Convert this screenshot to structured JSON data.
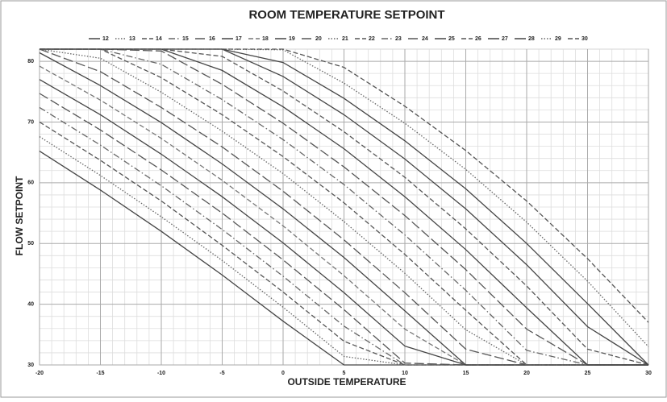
{
  "chart_data": {
    "type": "line",
    "title": "ROOM TEMPERATURE SETPOINT",
    "x_label": "OUTSIDE TEMPERATURE",
    "y_label": "FLOW SETPOINT",
    "x": [
      -20,
      -15,
      -10,
      -5,
      0,
      5,
      10,
      15,
      20,
      25,
      30
    ],
    "xlim": [
      -20,
      30
    ],
    "xticks": [
      -20,
      -15,
      -10,
      -5,
      0,
      5,
      10,
      15,
      20,
      25,
      30
    ],
    "ylim": [
      30,
      82
    ],
    "yticks": [
      30,
      40,
      50,
      60,
      70,
      80
    ],
    "grid": true,
    "legend": "top",
    "series": [
      {
        "name": "12",
        "color": "#444",
        "dash": "solid",
        "values": [
          65.2,
          58.8,
          52,
          44.8,
          37.2,
          30,
          30,
          30,
          30,
          30,
          30
        ]
      },
      {
        "name": "13",
        "color": "#666",
        "dash": "dot",
        "values": [
          67.6,
          61.2,
          54.4,
          47.2,
          39.5,
          31.4,
          30,
          30,
          30,
          30,
          30
        ]
      },
      {
        "name": "14",
        "color": "#555",
        "dash": "dash",
        "values": [
          70,
          63.7,
          57,
          49.7,
          42,
          33.9,
          30,
          30,
          30,
          30,
          30
        ]
      },
      {
        "name": "15",
        "color": "#666",
        "dash": "dashdot",
        "values": [
          72.4,
          66.2,
          59.5,
          52.3,
          44.6,
          36.4,
          30,
          30,
          30,
          30,
          30
        ]
      },
      {
        "name": "16",
        "color": "#555",
        "dash": "longdash",
        "values": [
          74.7,
          68.7,
          62.1,
          55,
          47.3,
          39.1,
          30.3,
          30,
          30,
          30,
          30
        ]
      },
      {
        "name": "17",
        "color": "#444",
        "dash": "solid",
        "values": [
          77,
          71.2,
          64.7,
          57.7,
          50.1,
          41.9,
          33.1,
          30,
          30,
          30,
          30
        ]
      },
      {
        "name": "18",
        "color": "#777",
        "dash": "dash",
        "values": [
          79.2,
          73.6,
          67.3,
          60.4,
          52.9,
          44.7,
          35.9,
          30,
          30,
          30,
          30
        ]
      },
      {
        "name": "19",
        "color": "#444",
        "dash": "solid",
        "values": [
          81.4,
          76,
          69.9,
          63.1,
          55.7,
          47.7,
          38.9,
          30,
          30,
          30,
          30
        ]
      },
      {
        "name": "20",
        "color": "#555",
        "dash": "longdash",
        "values": [
          82,
          78.3,
          72.4,
          65.9,
          58.6,
          50.6,
          41.9,
          32.6,
          30,
          30,
          30
        ]
      },
      {
        "name": "21",
        "color": "#666",
        "dash": "dot",
        "values": [
          82,
          80.5,
          74.9,
          68.5,
          61.5,
          53.6,
          45.1,
          35.8,
          30,
          30,
          30
        ]
      },
      {
        "name": "22",
        "color": "#555",
        "dash": "dash",
        "values": [
          82,
          82,
          77.3,
          71.2,
          64.3,
          56.7,
          48.2,
          39,
          30,
          30,
          30
        ]
      },
      {
        "name": "23",
        "color": "#666",
        "dash": "dashdot",
        "values": [
          82,
          82,
          79.5,
          73.7,
          67.1,
          59.7,
          51.4,
          42.3,
          32.4,
          30,
          30
        ]
      },
      {
        "name": "24",
        "color": "#555",
        "dash": "longdash",
        "values": [
          82,
          82,
          81.7,
          76.2,
          69.8,
          62.6,
          54.6,
          45.7,
          35.9,
          30,
          30
        ]
      },
      {
        "name": "25",
        "color": "#444",
        "dash": "solid",
        "values": [
          82,
          82,
          82,
          78.5,
          72.5,
          65.6,
          57.7,
          49,
          39.4,
          30,
          30
        ]
      },
      {
        "name": "26",
        "color": "#555",
        "dash": "dash",
        "values": [
          82,
          82,
          82,
          80.8,
          75.1,
          68.4,
          60.9,
          52.4,
          43,
          32.6,
          30
        ]
      },
      {
        "name": "27",
        "color": "#444",
        "dash": "solid",
        "values": [
          82,
          82,
          82,
          82,
          77.5,
          71.2,
          63.9,
          55.7,
          46.5,
          36.3,
          30
        ]
      },
      {
        "name": "28",
        "color": "#444",
        "dash": "solid",
        "values": [
          82,
          82,
          82,
          82,
          79.8,
          73.9,
          66.9,
          59,
          50,
          40.1,
          30
        ]
      },
      {
        "name": "29",
        "color": "#666",
        "dash": "dot",
        "values": [
          82,
          82,
          82,
          82,
          81.9,
          76.4,
          69.8,
          62.2,
          53.5,
          43.8,
          33
        ]
      },
      {
        "name": "30",
        "color": "#555",
        "dash": "dash",
        "values": [
          82,
          82,
          82,
          82,
          82,
          79,
          72.6,
          65.3,
          57,
          47.5,
          37
        ]
      }
    ]
  }
}
